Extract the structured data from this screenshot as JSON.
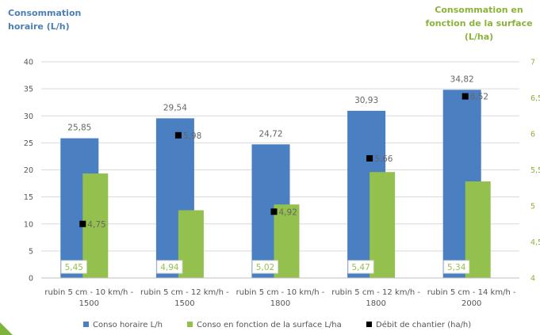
{
  "chart_data": {
    "type": "bar",
    "y_left_title_lines": [
      "Consommation",
      "horaire (L/h)"
    ],
    "y_right_title_lines": [
      "Consommation en",
      "fonction de la surface",
      "(L/ha)"
    ],
    "categories": [
      [
        "rubin 5 cm - 10 km/h -",
        "1500"
      ],
      [
        "rubin 5 cm - 12 km/h -",
        "1500"
      ],
      [
        "rubin 5 cm - 10 km/h -",
        "1800"
      ],
      [
        "rubin 5 cm - 12 km/h -",
        "1800"
      ],
      [
        "rubin 5 cm - 14 km/h -",
        "2000"
      ]
    ],
    "series": [
      {
        "name": "Conso horaire L/h",
        "axis": "left",
        "kind": "bar",
        "color": "#4a7fc1",
        "values": [
          25.85,
          29.54,
          24.72,
          30.93,
          34.82
        ],
        "labels": [
          "25,85",
          "29,54",
          "24,72",
          "30,93",
          "34,82"
        ]
      },
      {
        "name": "Conso en fonction de la surface L/ha",
        "axis": "right",
        "kind": "bar",
        "color": "#94c04e",
        "values": [
          5.45,
          4.94,
          5.02,
          5.47,
          5.34
        ],
        "labels": [
          "5,45",
          "4,94",
          "5,02",
          "5,47",
          "5,34"
        ]
      },
      {
        "name": "Débit de chantier (ha/h)",
        "axis": "left",
        "kind": "marker",
        "color": "#000000",
        "values": [
          4.75,
          5.98,
          4.92,
          5.66,
          6.52
        ],
        "labels": [
          "4,75",
          "5,98",
          "4,92",
          "5,66",
          "6,52"
        ]
      }
    ],
    "y_left": {
      "min": 0,
      "max": 40,
      "ticks": [
        "0",
        "5",
        "10",
        "15",
        "20",
        "25",
        "30",
        "35",
        "40"
      ]
    },
    "y_right": {
      "min": 4,
      "max": 7,
      "ticks": [
        "4",
        "4,5",
        "5",
        "5,5",
        "6",
        "6,5",
        "7"
      ]
    },
    "grid": true,
    "legend_position": "bottom"
  }
}
